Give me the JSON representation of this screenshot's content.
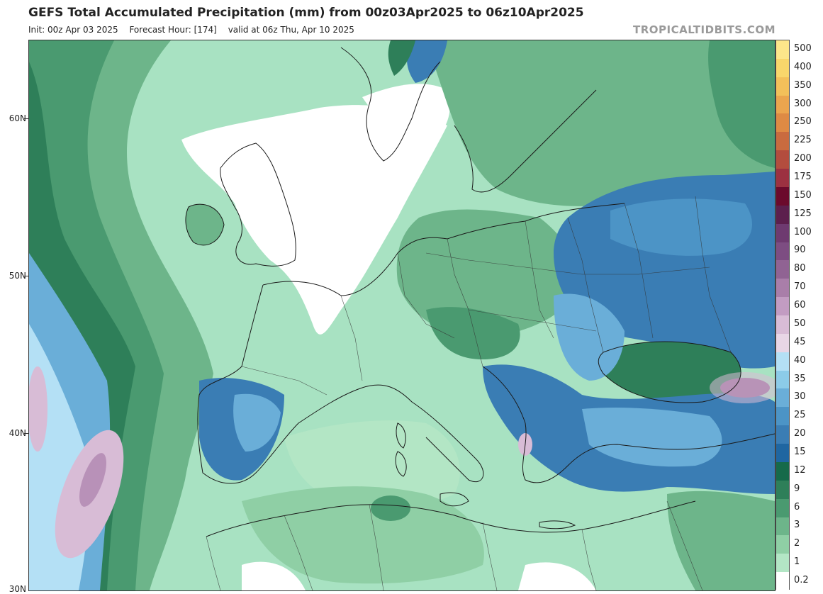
{
  "header": {
    "title": "GEFS Total Accumulated Precipitation (mm) from 00z03Apr2025 to 06z10Apr2025",
    "init": "Init: 00z Apr 03 2025",
    "forecast_hour": "Forecast Hour: [174]",
    "valid": "valid at 06z Thu, Apr 10 2025",
    "brand": "TROPICALTIDBITS.COM"
  },
  "map": {
    "lat_labels": [
      "60N",
      "50N",
      "40N",
      "30N"
    ]
  },
  "colorbar": {
    "levels": [
      {
        "label": "500",
        "color": "#fde68a"
      },
      {
        "label": "400",
        "color": "#f9d66b"
      },
      {
        "label": "350",
        "color": "#f3c05a"
      },
      {
        "label": "300",
        "color": "#eba54e"
      },
      {
        "label": "250",
        "color": "#de8a44"
      },
      {
        "label": "225",
        "color": "#c96b3f"
      },
      {
        "label": "200",
        "color": "#b34d3e"
      },
      {
        "label": "175",
        "color": "#9c3141"
      },
      {
        "label": "150",
        "color": "#6b0a2c"
      },
      {
        "label": "125",
        "color": "#5c1f4d"
      },
      {
        "label": "100",
        "color": "#6e3a70"
      },
      {
        "label": "90",
        "color": "#7d4d82"
      },
      {
        "label": "80",
        "color": "#906393"
      },
      {
        "label": "70",
        "color": "#a97ea9"
      },
      {
        "label": "60",
        "color": "#c29cc2"
      },
      {
        "label": "50",
        "color": "#d8bcd6"
      },
      {
        "label": "45",
        "color": "#e8d6e6"
      },
      {
        "label": "40",
        "color": "#b4e0f5"
      },
      {
        "label": "35",
        "color": "#8ccbe8"
      },
      {
        "label": "30",
        "color": "#6aaed8"
      },
      {
        "label": "25",
        "color": "#4c94c6"
      },
      {
        "label": "20",
        "color": "#3a7db4"
      },
      {
        "label": "15",
        "color": "#1f66a1"
      },
      {
        "label": "12",
        "color": "#166a4a"
      },
      {
        "label": "9",
        "color": "#2e7f59"
      },
      {
        "label": "6",
        "color": "#4a9a70"
      },
      {
        "label": "3",
        "color": "#6db58a"
      },
      {
        "label": "2",
        "color": "#8fcfa5"
      },
      {
        "label": "1",
        "color": "#b3e6c5"
      },
      {
        "label": "0.2",
        "color": "#ffffff"
      }
    ]
  }
}
